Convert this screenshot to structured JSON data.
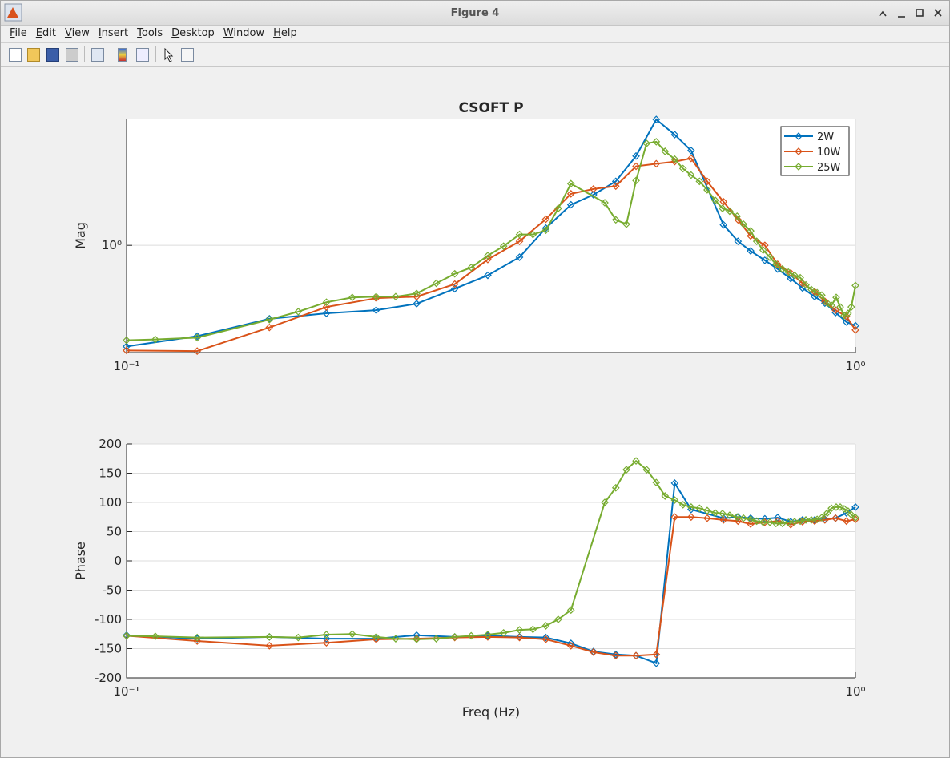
{
  "window": {
    "title": "Figure 4",
    "menu": [
      "File",
      "Edit",
      "View",
      "Insert",
      "Tools",
      "Desktop",
      "Window",
      "Help"
    ]
  },
  "chart_data": [
    {
      "type": "line",
      "title": "CSOFT P",
      "ylabel": "Mag",
      "xscale": "log",
      "yscale": "log",
      "xlim": [
        0.1,
        1
      ],
      "ylim": [
        0.275,
        4.6
      ],
      "xticks": [
        {
          "value": 0.1,
          "label": "10⁻¹"
        },
        {
          "value": 1,
          "label": "10⁰"
        }
      ],
      "yticks": [
        {
          "value": 1,
          "label": "10⁰"
        }
      ],
      "grid": true,
      "legend": "upper right",
      "series": [
        {
          "name": "2W",
          "color": "#0072bd",
          "x": [
            0.1,
            0.125,
            0.157,
            0.188,
            0.22,
            0.25,
            0.282,
            0.313,
            0.346,
            0.376,
            0.407,
            0.437,
            0.469,
            0.5,
            0.533,
            0.565,
            0.595,
            0.659,
            0.69,
            0.718,
            0.751,
            0.782,
            0.815,
            0.846,
            0.879,
            0.908,
            0.939,
            0.972,
            1.0
          ],
          "values": [
            0.296,
            0.335,
            0.413,
            0.441,
            0.458,
            0.495,
            0.593,
            0.697,
            0.867,
            1.23,
            1.63,
            1.84,
            2.16,
            2.93,
            4.55,
            3.79,
            3.13,
            1.28,
            1.05,
            0.935,
            0.835,
            0.752,
            0.67,
            0.598,
            0.539,
            0.499,
            0.445,
            0.397,
            0.38
          ]
        },
        {
          "name": "10W",
          "color": "#d95319",
          "x": [
            0.1,
            0.125,
            0.157,
            0.188,
            0.22,
            0.25,
            0.282,
            0.313,
            0.346,
            0.376,
            0.407,
            0.437,
            0.469,
            0.5,
            0.533,
            0.565,
            0.595,
            0.626,
            0.659,
            0.69,
            0.718,
            0.751,
            0.782,
            0.815,
            0.846,
            0.879,
            0.908,
            0.939,
            0.972,
            1.0
          ],
          "values": [
            0.282,
            0.28,
            0.372,
            0.476,
            0.529,
            0.539,
            0.627,
            0.843,
            1.05,
            1.37,
            1.86,
            1.97,
            2.04,
            2.59,
            2.67,
            2.74,
            2.85,
            2.16,
            1.69,
            1.36,
            1.12,
            1.0,
            0.796,
            0.717,
            0.633,
            0.571,
            0.509,
            0.458,
            0.425,
            0.361
          ]
        },
        {
          "name": "25W",
          "color": "#77ac30",
          "x": [
            0.1,
            0.1095,
            0.125,
            0.157,
            0.172,
            0.188,
            0.204,
            0.22,
            0.234,
            0.25,
            0.266,
            0.282,
            0.297,
            0.313,
            0.329,
            0.346,
            0.361,
            0.376,
            0.391,
            0.407,
            0.453,
            0.469,
            0.485,
            0.5,
            0.517,
            0.533,
            0.548,
            0.565,
            0.58,
            0.595,
            0.611,
            0.626,
            0.642,
            0.657,
            0.672,
            0.688,
            0.702,
            0.718,
            0.732,
            0.747,
            0.763,
            0.778,
            0.794,
            0.809,
            0.825,
            0.84,
            0.855,
            0.87,
            0.886,
            0.899,
            0.915,
            0.927,
            0.941,
            0.953,
            0.965,
            0.977,
            0.987,
            1.0
          ],
          "values": [
            0.319,
            0.322,
            0.329,
            0.409,
            0.45,
            0.504,
            0.534,
            0.539,
            0.539,
            0.56,
            0.633,
            0.71,
            0.766,
            0.884,
            0.99,
            1.14,
            1.14,
            1.2,
            1.56,
            2.1,
            1.67,
            1.36,
            1.29,
            2.18,
            3.41,
            3.48,
            3.1,
            2.82,
            2.52,
            2.33,
            2.16,
            1.95,
            1.72,
            1.56,
            1.51,
            1.42,
            1.29,
            1.19,
            1.05,
            0.944,
            0.867,
            0.796,
            0.752,
            0.724,
            0.697,
            0.677,
            0.621,
            0.587,
            0.565,
            0.549,
            0.499,
            0.485,
            0.534,
            0.476,
            0.429,
            0.441,
            0.476,
            0.616
          ]
        }
      ]
    },
    {
      "type": "line",
      "xlabel": "Freq (Hz)",
      "ylabel": "Phase",
      "xscale": "log",
      "xlim": [
        0.1,
        1
      ],
      "ylim": [
        -200,
        200
      ],
      "xticks": [
        {
          "value": 0.1,
          "label": "10⁻¹"
        },
        {
          "value": 1,
          "label": "10⁰"
        }
      ],
      "yticks": [
        -200,
        -150,
        -100,
        -50,
        0,
        50,
        100,
        150,
        200
      ],
      "grid": true,
      "series": [
        {
          "color": "#0072bd",
          "x": [
            0.1,
            0.125,
            0.157,
            0.188,
            0.22,
            0.25,
            0.282,
            0.313,
            0.346,
            0.376,
            0.407,
            0.437,
            0.469,
            0.5,
            0.533,
            0.565,
            0.595,
            0.659,
            0.69,
            0.718,
            0.751,
            0.782,
            0.815,
            0.846,
            0.879,
            0.908,
            0.939,
            0.972,
            1.0
          ],
          "values": [
            -127,
            -133,
            -130,
            -133,
            -133,
            -127,
            -130,
            -128,
            -130,
            -131,
            -141,
            -155,
            -160,
            -162,
            -175,
            133,
            88,
            73,
            75,
            73,
            72,
            74,
            67,
            70,
            70,
            71,
            73,
            82,
            92
          ]
        },
        {
          "color": "#d95319",
          "x": [
            0.1,
            0.125,
            0.157,
            0.188,
            0.22,
            0.25,
            0.282,
            0.313,
            0.346,
            0.376,
            0.407,
            0.437,
            0.469,
            0.5,
            0.533,
            0.565,
            0.595,
            0.626,
            0.659,
            0.69,
            0.718,
            0.751,
            0.782,
            0.815,
            0.846,
            0.879,
            0.908,
            0.939,
            0.972,
            1.0
          ],
          "values": [
            -128,
            -137,
            -145,
            -140,
            -134,
            -133,
            -131,
            -130,
            -131,
            -134,
            -145,
            -156,
            -162,
            -162,
            -160,
            75,
            75,
            73,
            70,
            68,
            63,
            66,
            68,
            62,
            67,
            68,
            70,
            73,
            68,
            71
          ]
        },
        {
          "color": "#77ac30",
          "x": [
            0.1,
            0.1095,
            0.125,
            0.157,
            0.172,
            0.188,
            0.204,
            0.22,
            0.234,
            0.25,
            0.266,
            0.282,
            0.297,
            0.313,
            0.329,
            0.346,
            0.361,
            0.376,
            0.391,
            0.407,
            0.453,
            0.469,
            0.485,
            0.5,
            0.517,
            0.533,
            0.548,
            0.565,
            0.58,
            0.595,
            0.611,
            0.626,
            0.642,
            0.657,
            0.672,
            0.688,
            0.702,
            0.718,
            0.732,
            0.747,
            0.763,
            0.778,
            0.794,
            0.809,
            0.825,
            0.84,
            0.855,
            0.87,
            0.886,
            0.899,
            0.915,
            0.927,
            0.941,
            0.953,
            0.965,
            0.977,
            0.987,
            1.0
          ],
          "values": [
            -128,
            -129,
            -131,
            -130,
            -131,
            -126,
            -125,
            -130,
            -133,
            -134,
            -133,
            -130,
            -128,
            -126,
            -123,
            -118,
            -117,
            -111,
            -100,
            -84,
            100,
            125,
            156,
            171,
            156,
            134,
            111,
            104,
            96,
            92,
            90,
            86,
            82,
            81,
            78,
            75,
            73,
            71,
            68,
            66,
            66,
            64,
            64,
            66,
            67,
            68,
            70,
            70,
            71,
            74,
            82,
            90,
            92,
            92,
            89,
            85,
            79,
            74
          ]
        }
      ]
    }
  ]
}
